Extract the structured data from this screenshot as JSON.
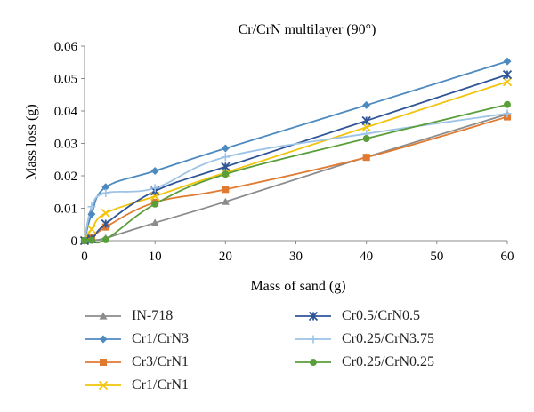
{
  "chart_data": {
    "type": "line",
    "title": "Cr/CrN multilayer (90°)",
    "xlabel": "Mass of sand (g)",
    "ylabel": "Mass loss (g)",
    "xlim": [
      0,
      60
    ],
    "ylim": [
      0,
      0.06
    ],
    "xticks": [
      "0",
      "10",
      "20",
      "30",
      "40",
      "50",
      "60"
    ],
    "yticks": [
      "0",
      "0.01",
      "0.02",
      "0.03",
      "0.04",
      "0.05",
      "0.06"
    ],
    "grid": false,
    "legend_position": "bottom",
    "series": [
      {
        "name": "IN-718",
        "color": "#8c8c8c",
        "marker": "triangle",
        "x": [
          0,
          1,
          3,
          10,
          20,
          40,
          60
        ],
        "y": [
          0,
          0.0002,
          0.0008,
          0.0055,
          0.012,
          0.0258,
          0.039
        ]
      },
      {
        "name": "Cr1/CrN3",
        "color": "#4d8ac0",
        "marker": "diamond",
        "x": [
          0,
          1,
          3,
          10,
          20,
          40,
          60
        ],
        "y": [
          0,
          0.0082,
          0.0165,
          0.0215,
          0.0285,
          0.0418,
          0.0553
        ]
      },
      {
        "name": "Cr3/CrN1",
        "color": "#e07a30",
        "marker": "square",
        "x": [
          0,
          1,
          3,
          10,
          20,
          40,
          60
        ],
        "y": [
          0,
          0.0008,
          0.0042,
          0.0118,
          0.0158,
          0.0257,
          0.0382
        ]
      },
      {
        "name": "Cr1/CrN1",
        "color": "#f2c40c",
        "marker": "x",
        "x": [
          0,
          1,
          3,
          10,
          20,
          40,
          60
        ],
        "y": [
          0,
          0.0035,
          0.0085,
          0.0137,
          0.021,
          0.035,
          0.049
        ]
      },
      {
        "name": "Cr0.5/CrN0.5",
        "color": "#2f5597",
        "marker": "star",
        "x": [
          0,
          1,
          3,
          10,
          20,
          40,
          60
        ],
        "y": [
          0,
          0.0005,
          0.0052,
          0.0153,
          0.0228,
          0.037,
          0.0512
        ]
      },
      {
        "name": "Cr0.25/CrN3.75",
        "color": "#9dc3e6",
        "marker": "plus",
        "x": [
          0,
          1,
          3,
          10,
          20,
          40,
          60
        ],
        "y": [
          0,
          0.0105,
          0.0147,
          0.0162,
          0.0258,
          0.033,
          0.0392
        ]
      },
      {
        "name": "Cr0.25/CrN0.25",
        "color": "#5a9e3a",
        "marker": "circle",
        "x": [
          0,
          1,
          3,
          10,
          20,
          40,
          60
        ],
        "y": [
          0,
          0.0001,
          0.0003,
          0.0113,
          0.0205,
          0.0315,
          0.042
        ]
      }
    ]
  }
}
